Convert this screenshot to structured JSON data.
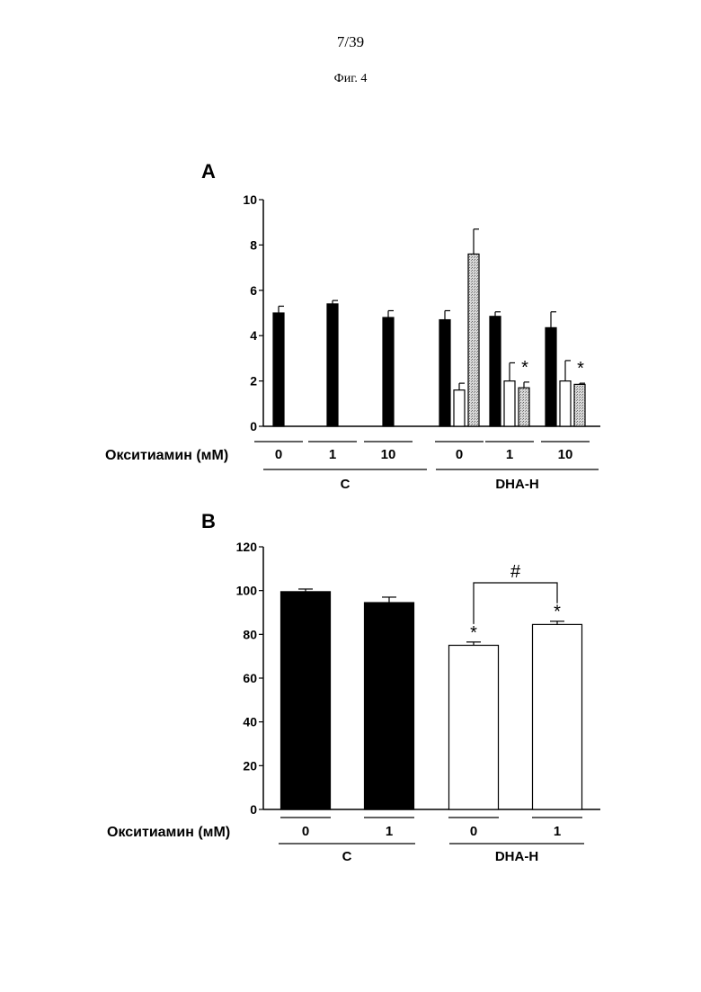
{
  "header": {
    "page_number": "7/39",
    "figure_caption": "Фиг. 4"
  },
  "colors": {
    "black_bar": "#000000",
    "white_bar": "#ffffff",
    "hatched_bar": "#b8b8b8"
  },
  "chart_data": [
    {
      "panel": "A",
      "type": "bar",
      "ylim": [
        0,
        10
      ],
      "yticks": [
        0,
        2,
        4,
        6,
        8,
        10
      ],
      "row_label": "Окситиамин (мМ)",
      "groups": [
        {
          "label": "C",
          "subgroups": [
            {
              "label": "0",
              "bars": [
                {
                  "style": "black",
                  "value": 5.0,
                  "err": 0.3
                }
              ]
            },
            {
              "label": "1",
              "bars": [
                {
                  "style": "black",
                  "value": 5.4,
                  "err": 0.15
                }
              ]
            },
            {
              "label": "10",
              "bars": [
                {
                  "style": "black",
                  "value": 4.8,
                  "err": 0.3
                }
              ]
            }
          ]
        },
        {
          "label": "DHA-H",
          "subgroups": [
            {
              "label": "0",
              "bars": [
                {
                  "style": "black",
                  "value": 4.7,
                  "err": 0.4
                },
                {
                  "style": "white",
                  "value": 1.6,
                  "err": 0.3
                },
                {
                  "style": "hatched",
                  "value": 7.6,
                  "err": 1.1
                }
              ]
            },
            {
              "label": "1",
              "bars": [
                {
                  "style": "black",
                  "value": 4.85,
                  "err": 0.2
                },
                {
                  "style": "white",
                  "value": 2.0,
                  "err": 0.8
                },
                {
                  "style": "hatched",
                  "value": 1.7,
                  "err": 0.25,
                  "marker": "*"
                }
              ]
            },
            {
              "label": "10",
              "bars": [
                {
                  "style": "black",
                  "value": 4.35,
                  "err": 0.7
                },
                {
                  "style": "white",
                  "value": 2.0,
                  "err": 0.9
                },
                {
                  "style": "hatched",
                  "value": 1.85,
                  "err": 0.05,
                  "marker": "*"
                }
              ]
            }
          ]
        }
      ]
    },
    {
      "panel": "B",
      "type": "bar",
      "ylim": [
        0,
        120
      ],
      "yticks": [
        0,
        20,
        40,
        60,
        80,
        100,
        120
      ],
      "row_label": "Окситиамин (мМ)",
      "groups": [
        {
          "label": "C",
          "subgroups": [
            {
              "label": "0",
              "bars": [
                {
                  "style": "black",
                  "value": 99.5,
                  "err": 1.2
                }
              ]
            },
            {
              "label": "1",
              "bars": [
                {
                  "style": "black",
                  "value": 94.5,
                  "err": 2.5
                }
              ]
            }
          ]
        },
        {
          "label": "DHA-H",
          "subgroups": [
            {
              "label": "0",
              "bars": [
                {
                  "style": "white",
                  "value": 75.0,
                  "err": 1.5,
                  "marker": "*"
                }
              ]
            },
            {
              "label": "1",
              "bars": [
                {
                  "style": "white",
                  "value": 84.5,
                  "err": 1.5,
                  "marker": "*"
                }
              ]
            }
          ]
        }
      ],
      "bracket": {
        "label": "#",
        "from": "DHA-H 0",
        "to": "DHA-H 1"
      }
    }
  ]
}
